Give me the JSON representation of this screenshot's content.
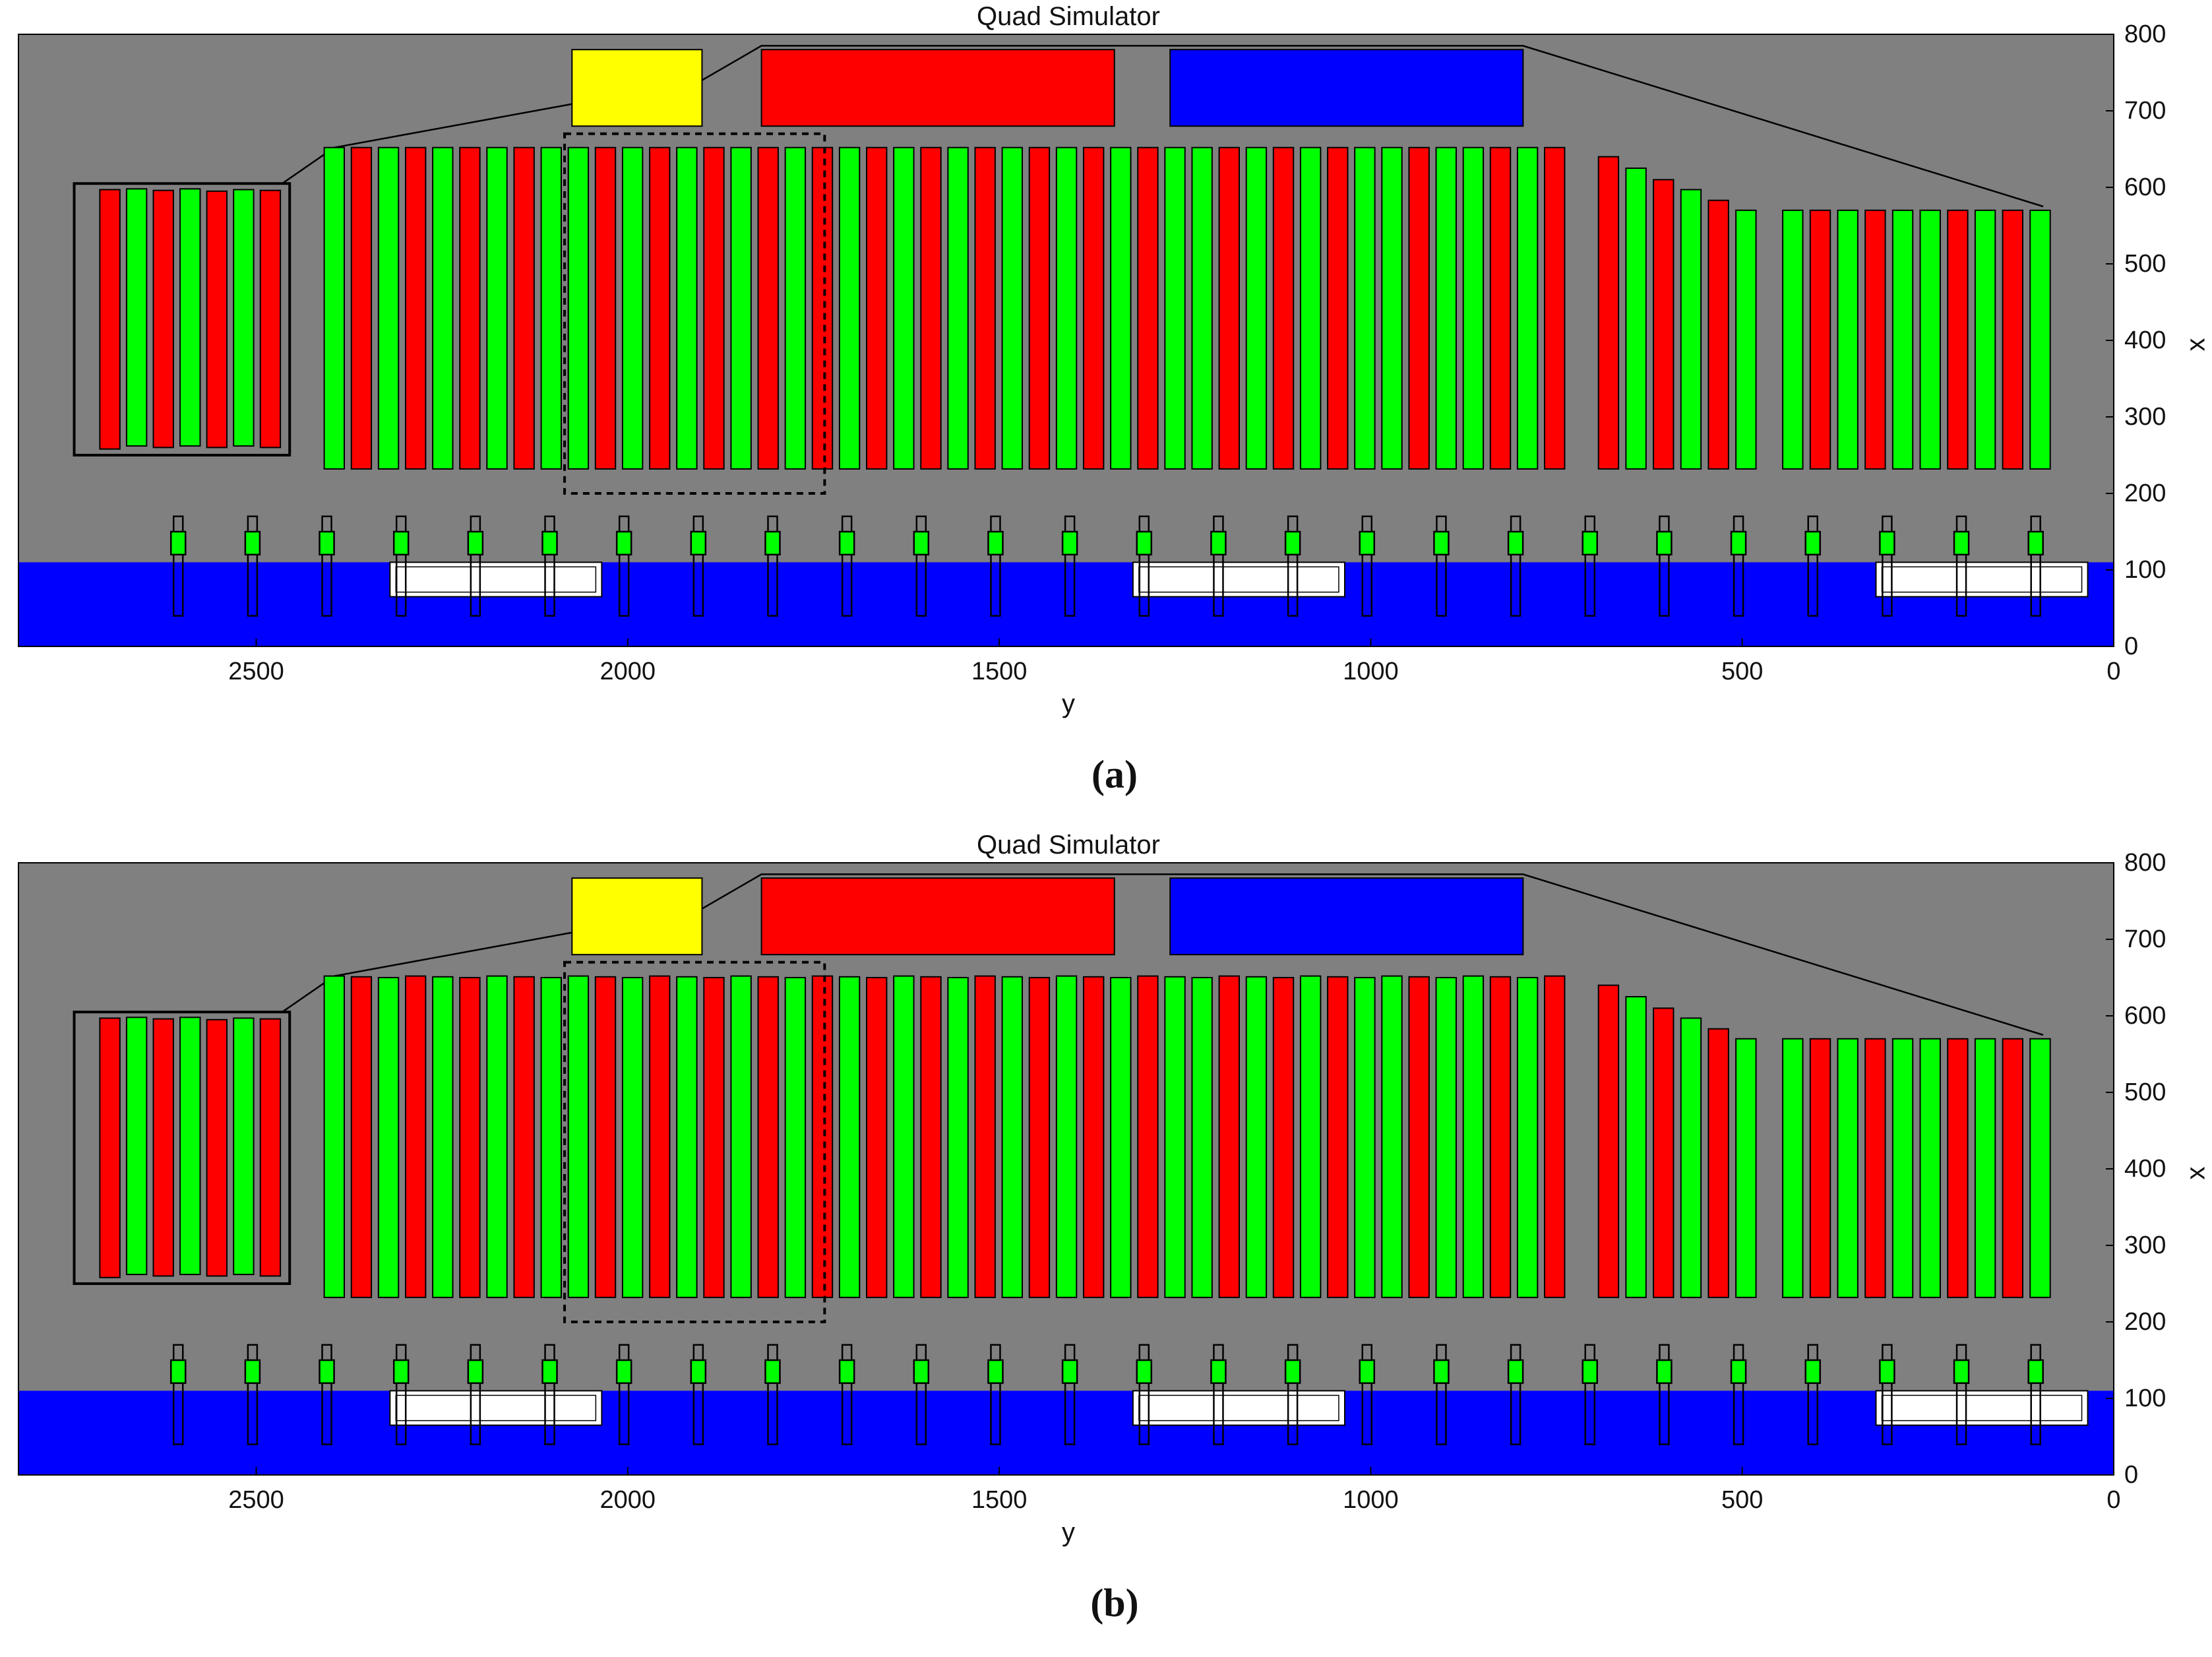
{
  "panels": [
    {
      "id": "a",
      "title": "Quad Simulator",
      "caption": "(a)",
      "xlabel": "y",
      "ylabel": "x",
      "x_ticks": [
        "2500",
        "2000",
        "1500",
        "1000",
        "500",
        "0"
      ],
      "y_ticks": [
        "800",
        "700",
        "600",
        "500",
        "400",
        "300",
        "200",
        "100",
        "0"
      ]
    },
    {
      "id": "b",
      "title": "Quad Simulator",
      "caption": "(b)",
      "xlabel": "y",
      "ylabel": "x",
      "x_ticks": [
        "2500",
        "2000",
        "1500",
        "1000",
        "500",
        "0"
      ],
      "y_ticks": [
        "800",
        "700",
        "600",
        "500",
        "400",
        "300",
        "200",
        "100",
        "0"
      ]
    }
  ],
  "scene": {
    "y_range": [
      2820,
      0
    ],
    "x_range": [
      0,
      800
    ],
    "colors": {
      "background": "#808080",
      "water": "#0000ff",
      "red": "#ff0000",
      "green": "#00ff00",
      "yellow": "#ffff00",
      "blue": "#0000ff",
      "outline": "#000000",
      "white": "#ffffff"
    },
    "water_top": 110,
    "top_blocks": [
      {
        "color": "yellow",
        "y1": 2075,
        "y2": 1900,
        "x1": 680,
        "x2": 780
      },
      {
        "color": "red",
        "y1": 1820,
        "y2": 1345,
        "x1": 680,
        "x2": 780
      },
      {
        "color": "blue",
        "y1": 1270,
        "y2": 795,
        "x1": 680,
        "x2": 780
      }
    ],
    "left_box": {
      "y1": 2745,
      "y2": 2455,
      "x1": 250,
      "x2": 605
    },
    "left_bars": [
      {
        "y": 2697,
        "color": "red",
        "top": 597,
        "bottom": 258
      },
      {
        "y": 2661,
        "color": "green",
        "top": 598,
        "bottom": 262
      },
      {
        "y": 2625,
        "color": "red",
        "top": 596,
        "bottom": 260
      },
      {
        "y": 2589,
        "color": "green",
        "top": 598,
        "bottom": 262
      },
      {
        "y": 2553,
        "color": "red",
        "top": 595,
        "bottom": 260
      },
      {
        "y": 2517,
        "color": "green",
        "top": 597,
        "bottom": 262
      },
      {
        "y": 2481,
        "color": "red",
        "top": 596,
        "bottom": 260
      }
    ],
    "dashed_box": {
      "y1": 2085,
      "y2": 1735,
      "x1": 200,
      "x2": 670
    },
    "bar_groups": [
      {
        "y_start": 2395,
        "step": 36.5,
        "bottom": 232,
        "pattern": [
          "green",
          "red",
          "green",
          "red",
          "green",
          "red",
          "green",
          "red",
          "green",
          "green",
          "red",
          "green",
          "red",
          "green",
          "red",
          "green",
          "red",
          "green",
          "red",
          "green",
          "red",
          "green",
          "red",
          "green",
          "red",
          "green",
          "red",
          "green",
          "red",
          "green",
          "red",
          "green",
          "green",
          "red",
          "green",
          "red",
          "green",
          "red",
          "green",
          "green",
          "red",
          "green",
          "green",
          "red",
          "green",
          "red",
          "green",
          "green",
          "red",
          "green",
          "red"
        ],
        "tops": [
          652,
          652,
          652,
          652,
          652,
          652,
          652,
          652,
          652,
          652,
          652,
          652,
          652,
          652,
          652,
          652,
          652,
          652,
          652,
          652,
          652,
          652,
          652,
          652,
          652,
          652,
          652,
          652,
          652,
          652,
          652,
          652,
          652,
          652,
          652,
          652,
          652,
          652,
          652,
          652,
          652,
          652,
          652,
          652,
          652,
          652,
          652,
          652,
          652,
          652,
          652
        ]
      }
    ],
    "right_bars": [
      {
        "y": 680,
        "color": "red",
        "top": 640
      },
      {
        "y": 643,
        "color": "green",
        "top": 625
      },
      {
        "y": 606,
        "color": "red",
        "top": 610
      },
      {
        "y": 569,
        "color": "green",
        "top": 597
      },
      {
        "y": 532,
        "color": "red",
        "top": 583
      },
      {
        "y": 495,
        "color": "green",
        "top": 570
      },
      {
        "y": 432,
        "color": "green",
        "top": 570
      },
      {
        "y": 395,
        "color": "red",
        "top": 570
      },
      {
        "y": 358,
        "color": "green",
        "top": 570
      },
      {
        "y": 321,
        "color": "red",
        "top": 570
      },
      {
        "y": 284,
        "color": "green",
        "top": 570
      },
      {
        "y": 247,
        "color": "green",
        "top": 570
      },
      {
        "y": 210,
        "color": "red",
        "top": 570
      },
      {
        "y": 173,
        "color": "green",
        "top": 570
      },
      {
        "y": 136,
        "color": "red",
        "top": 570
      },
      {
        "y": 99,
        "color": "green",
        "top": 570
      }
    ],
    "posts": [
      2605,
      2505,
      2405,
      2305,
      2205,
      2105,
      2005,
      1905,
      1805,
      1705,
      1605,
      1505,
      1405,
      1305,
      1205,
      1105,
      1005,
      905,
      805,
      705,
      605,
      505,
      405,
      305,
      205,
      105
    ],
    "white_boxes": [
      {
        "y1": 2320,
        "y2": 2035,
        "x1": 65,
        "x2": 110
      },
      {
        "y1": 1320,
        "y2": 1035,
        "x1": 65,
        "x2": 110
      },
      {
        "y1": 320,
        "y2": 35,
        "x1": 65,
        "x2": 110
      }
    ],
    "outline_path": [
      [
        2745,
        605
      ],
      [
        2465,
        605
      ],
      [
        2395,
        652
      ],
      [
        1900,
        740
      ],
      [
        1820,
        785
      ],
      [
        795,
        785
      ],
      [
        95,
        575
      ]
    ]
  }
}
